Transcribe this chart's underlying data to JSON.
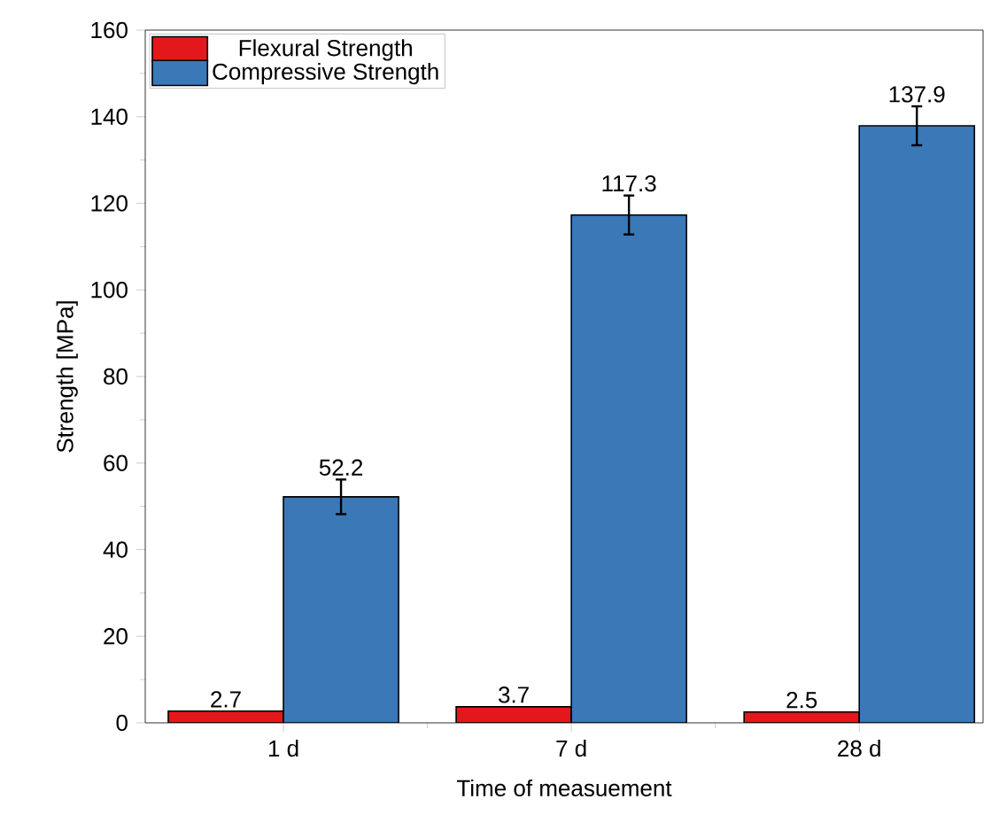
{
  "chart_data": {
    "type": "bar",
    "xlabel": "Time of measuement",
    "ylabel": "Strength [MPa]",
    "categories": [
      "1 d",
      "7 d",
      "28 d"
    ],
    "series": [
      {
        "name": "Flexural Strength",
        "color": "#e3181c",
        "values": [
          2.7,
          3.7,
          2.5
        ]
      },
      {
        "name": "Compressive Strength",
        "color": "#3a78b8",
        "values": [
          52.2,
          117.3,
          137.9
        ],
        "errors": [
          4,
          4.5,
          4.5
        ]
      }
    ],
    "ylim": [
      0,
      160
    ],
    "yticks": [
      0,
      20,
      40,
      60,
      80,
      100,
      120,
      140,
      160
    ],
    "data_labels": true,
    "legend": "top left",
    "grid": false
  }
}
